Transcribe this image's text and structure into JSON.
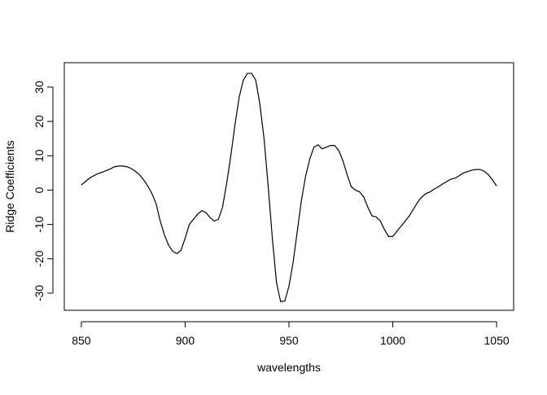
{
  "chart_data": {
    "type": "line",
    "xlabel": "wavelengths",
    "ylabel": "Ridge Coefficients",
    "x": [
      850,
      852,
      854,
      856,
      858,
      860,
      862,
      864,
      866,
      868,
      870,
      872,
      874,
      876,
      878,
      880,
      882,
      884,
      886,
      888,
      890,
      892,
      894,
      896,
      898,
      900,
      902,
      904,
      906,
      908,
      910,
      912,
      914,
      916,
      918,
      920,
      922,
      924,
      926,
      928,
      930,
      932,
      934,
      936,
      938,
      940,
      942,
      944,
      946,
      948,
      950,
      952,
      954,
      956,
      958,
      960,
      962,
      964,
      966,
      968,
      970,
      972,
      974,
      976,
      978,
      980,
      982,
      984,
      986,
      988,
      990,
      992,
      994,
      996,
      998,
      1000,
      1002,
      1004,
      1006,
      1008,
      1010,
      1012,
      1014,
      1016,
      1018,
      1020,
      1022,
      1024,
      1026,
      1028,
      1030,
      1032,
      1034,
      1036,
      1038,
      1040,
      1042,
      1044,
      1046,
      1048,
      1050
    ],
    "values": [
      1.5,
      2.5,
      3.5,
      4.2,
      4.8,
      5.2,
      5.7,
      6.2,
      6.8,
      7,
      7,
      6.8,
      6.3,
      5.5,
      4.5,
      3,
      1.2,
      -1,
      -4,
      -9,
      -13,
      -16,
      -17.8,
      -18.5,
      -17.5,
      -14,
      -10,
      -8.5,
      -7,
      -6,
      -6.5,
      -8,
      -9,
      -8.5,
      -5,
      2,
      10,
      19,
      27,
      32,
      34,
      34,
      32,
      25,
      15,
      1,
      -14,
      -27,
      -32.5,
      -32.3,
      -28,
      -21,
      -12,
      -3,
      4,
      9,
      12.5,
      13.2,
      12,
      12.5,
      13,
      13,
      11.5,
      8.5,
      4.5,
      1,
      0,
      -0.5,
      -2,
      -5,
      -7.5,
      -7.8,
      -9,
      -11.5,
      -13.5,
      -13.5,
      -12,
      -10.5,
      -9,
      -7.5,
      -5.5,
      -3.5,
      -2,
      -1,
      -0.5,
      0.3,
      1,
      1.8,
      2.5,
      3.2,
      3.5,
      4.2,
      5,
      5.4,
      5.8,
      6,
      6,
      5.5,
      4.5,
      3,
      1.2
    ],
    "color": "#000000",
    "xlim": [
      841.8,
      1058.2
    ],
    "xticks": [
      850,
      900,
      950,
      1000,
      1050
    ],
    "ylim": [
      -35.0,
      37.1
    ],
    "yticks": [
      -30,
      -20,
      -10,
      0,
      10,
      20,
      30
    ],
    "grid": false
  }
}
